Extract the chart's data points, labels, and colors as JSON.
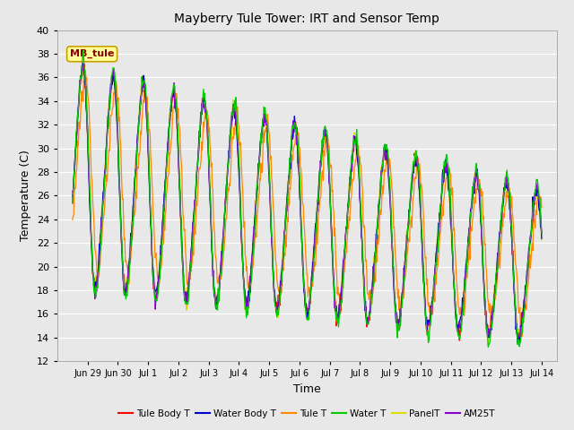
{
  "title": "Mayberry Tule Tower: IRT and Sensor Temp",
  "xlabel": "Time",
  "ylabel": "Temperature (C)",
  "ylim": [
    12,
    40
  ],
  "yticks": [
    12,
    14,
    16,
    18,
    20,
    22,
    24,
    26,
    28,
    30,
    32,
    34,
    36,
    38,
    40
  ],
  "background_color": "#e8e8e8",
  "plot_bg_color": "#e8e8e8",
  "grid_color": "#ffffff",
  "annotation_text": "MB_tule",
  "annotation_color": "#8b0000",
  "annotation_bg": "#ffff99",
  "annotation_border": "#c8a000",
  "series": [
    {
      "label": "Tule Body T",
      "color": "#ff0000"
    },
    {
      "label": "Water Body T",
      "color": "#0000cc"
    },
    {
      "label": "Tule T",
      "color": "#ff8800"
    },
    {
      "label": "Water T",
      "color": "#00cc00"
    },
    {
      "label": "PanelT",
      "color": "#dddd00"
    },
    {
      "label": "AM25T",
      "color": "#8800cc"
    }
  ],
  "date_labels": [
    "Jun 29",
    "Jun 30",
    "Jul 1",
    "Jul 2",
    "Jul 3",
    "Jul 4",
    "Jul 5",
    "Jul 6",
    "Jul 7",
    "Jul 8",
    "Jul 9",
    "Jul 10",
    "Jul 11",
    "Jul 12",
    "Jul 13",
    "Jul 14"
  ],
  "date_ticks": [
    1,
    2,
    3,
    4,
    5,
    6,
    7,
    8,
    9,
    10,
    11,
    12,
    13,
    14,
    15,
    16
  ]
}
